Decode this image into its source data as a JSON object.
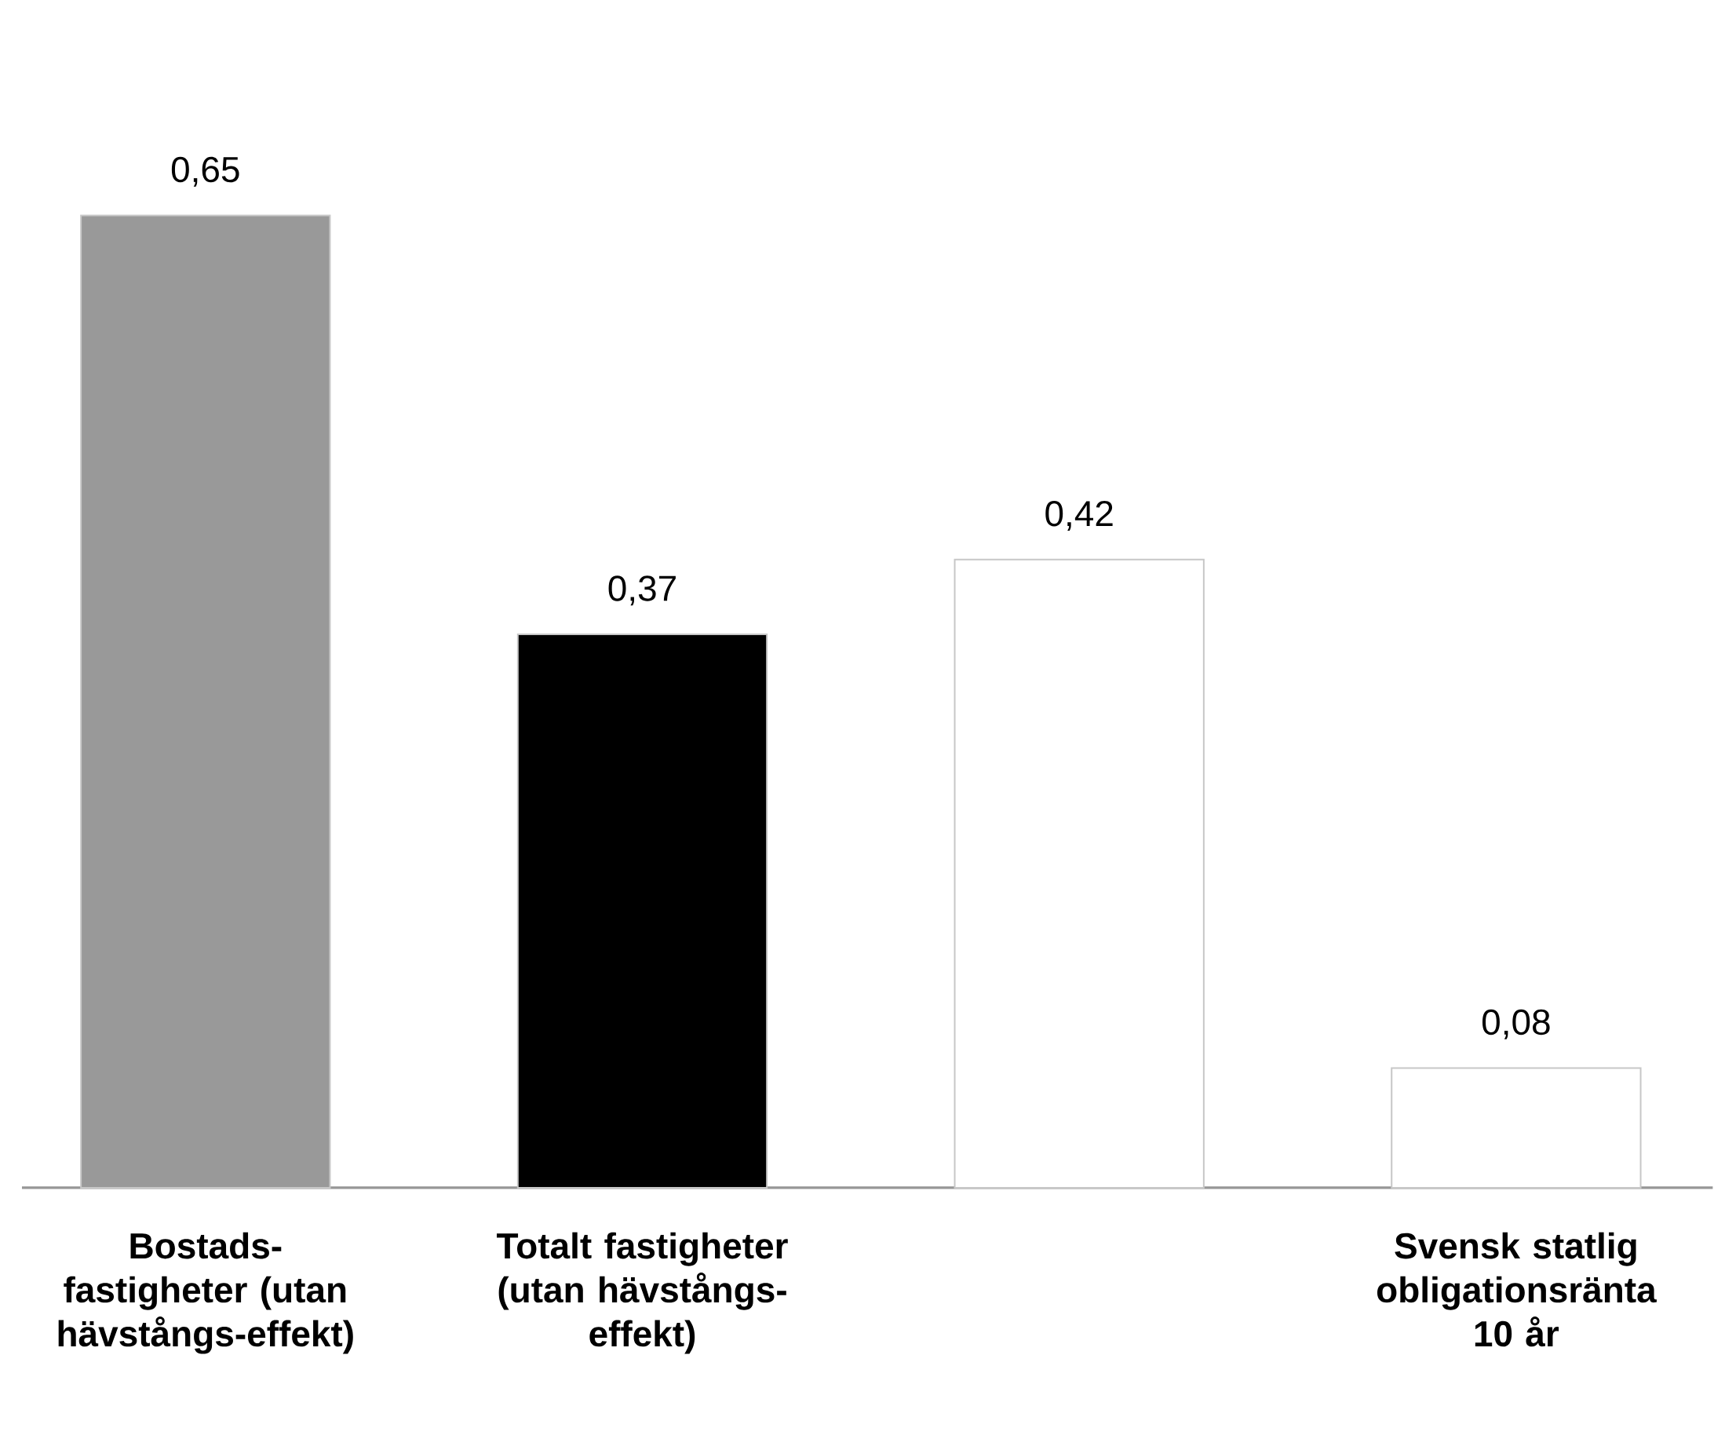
{
  "chart_data": {
    "type": "bar",
    "categories": [
      "Bostads-fastigheter (utan hävstångs-effekt)",
      "Totalt fastigheter (utan hävstångs-effekt)",
      null,
      "Svensk statlig obligationsränta 10 år"
    ],
    "values": [
      0.65,
      0.37,
      0.42,
      0.08
    ],
    "value_labels": [
      "0,65",
      "0,37",
      "0,42",
      "0,08"
    ],
    "colors": [
      "#999999",
      "#000000",
      "#ffffff",
      "#ffffff"
    ]
  }
}
